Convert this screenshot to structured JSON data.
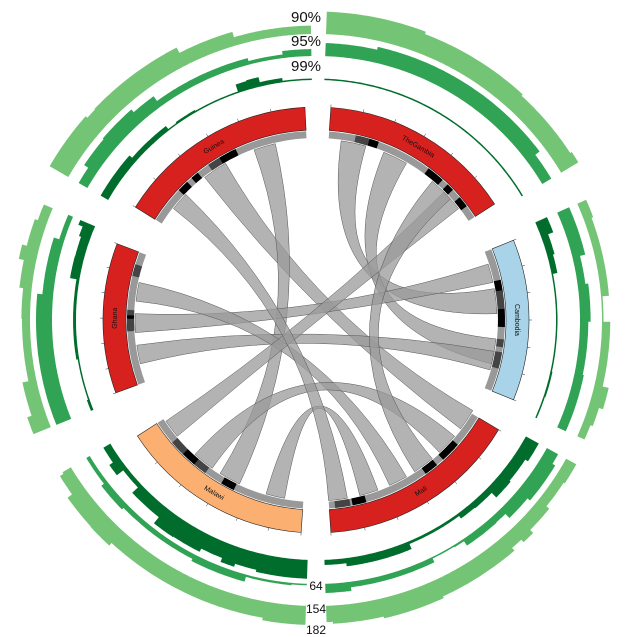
{
  "ring_labels": [
    "90%",
    "95%",
    "99%"
  ],
  "count_labels": [
    "64",
    "154",
    "182"
  ],
  "sectors": [
    "Guinea",
    "TheGambia",
    "Cambodia",
    "Mali",
    "Malawi",
    "Ghana"
  ]
}
